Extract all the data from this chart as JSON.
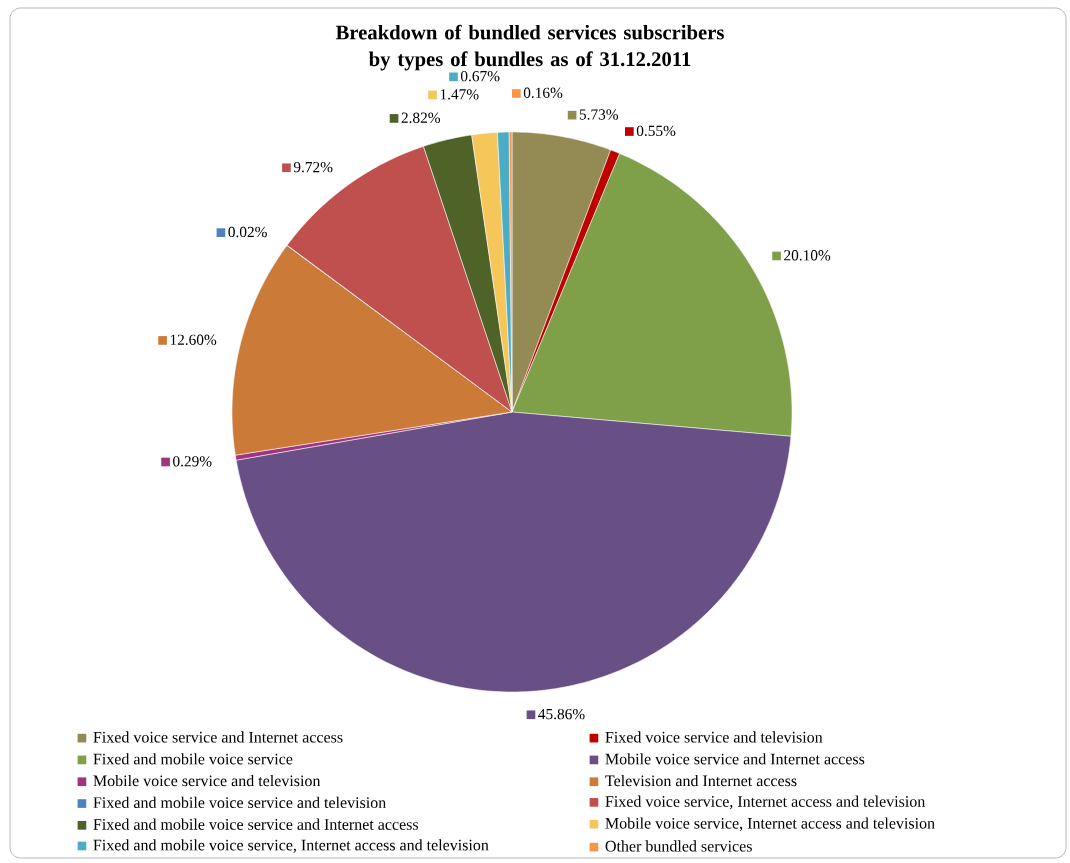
{
  "chart_data": {
    "type": "pie",
    "title": "Breakdown of bundled services subscribers by types of bundles as of 31.12.2011",
    "categories": [
      "Fixed voice service and Internet access",
      "Fixed voice service and television",
      "Fixed and mobile voice service",
      "Mobile voice service and Internet access",
      "Mobile voice service and television",
      "Television and Internet access",
      "Fixed and mobile voice service and television",
      "Fixed voice service, Internet access and television",
      "Fixed and mobile voice service and Internet access",
      "Mobile voice service, Internet access and television",
      "Fixed and mobile voice service, Internet access and television",
      "Other bundled services"
    ],
    "values": [
      5.73,
      0.55,
      20.1,
      45.86,
      0.29,
      12.6,
      0.02,
      9.72,
      2.82,
      1.47,
      0.67,
      0.16
    ],
    "value_labels": [
      "5.73%",
      "0.55%",
      "20.10%",
      "45.86%",
      "0.29%",
      "12.60%",
      "0.02%",
      "9.72%",
      "2.82%",
      "1.47%",
      "0.67%",
      "0.16%"
    ],
    "colors": [
      "#948a54",
      "#c00000",
      "#7f9f48",
      "#684f86",
      "#a0347f",
      "#cc7a38",
      "#4f81bd",
      "#c0504d",
      "#4f6228",
      "#f5c65a",
      "#4bacc6",
      "#f79646"
    ],
    "legend": "bottom"
  }
}
